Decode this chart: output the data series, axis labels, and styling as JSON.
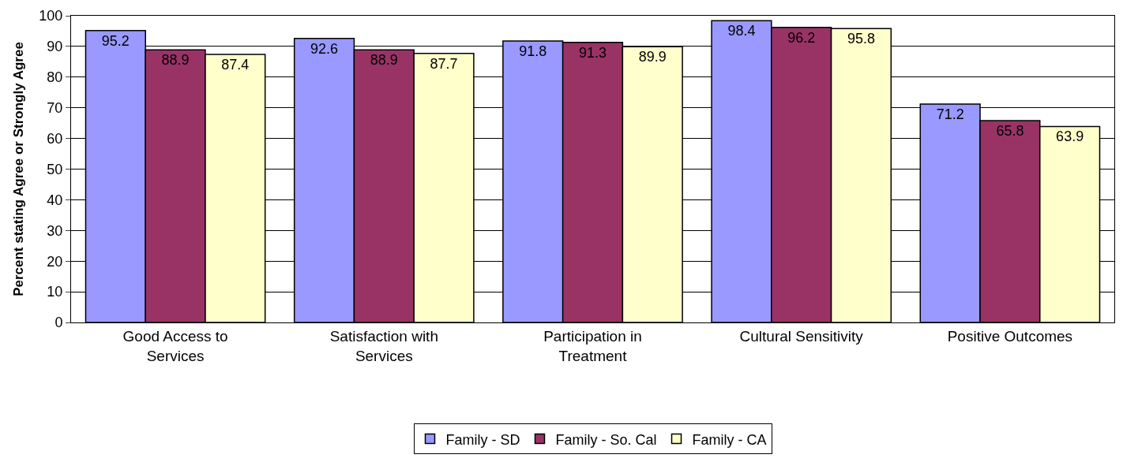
{
  "chart_data": {
    "type": "bar",
    "ylabel": "Percent stating Agree or Strongly Agree",
    "categories": [
      "Good Access to Services",
      "Satisfaction with Services",
      "Participation in Treatment",
      "Cultural Sensitivity",
      "Positive Outcomes"
    ],
    "series": [
      {
        "name": "Family - SD",
        "color": "#9999ff",
        "values": [
          95.2,
          92.6,
          91.8,
          98.4,
          71.2
        ]
      },
      {
        "name": "Family - So. Cal",
        "color": "#993366",
        "values": [
          88.9,
          88.9,
          91.3,
          96.2,
          65.8
        ]
      },
      {
        "name": "Family - CA",
        "color": "#ffffcc",
        "values": [
          87.4,
          87.7,
          89.9,
          95.8,
          63.9
        ]
      }
    ],
    "ylim": [
      0,
      100
    ],
    "yticks": [
      0,
      10,
      20,
      30,
      40,
      50,
      60,
      70,
      80,
      90,
      100
    ],
    "grid": "y",
    "legend": "bottom",
    "data_labels": true
  }
}
